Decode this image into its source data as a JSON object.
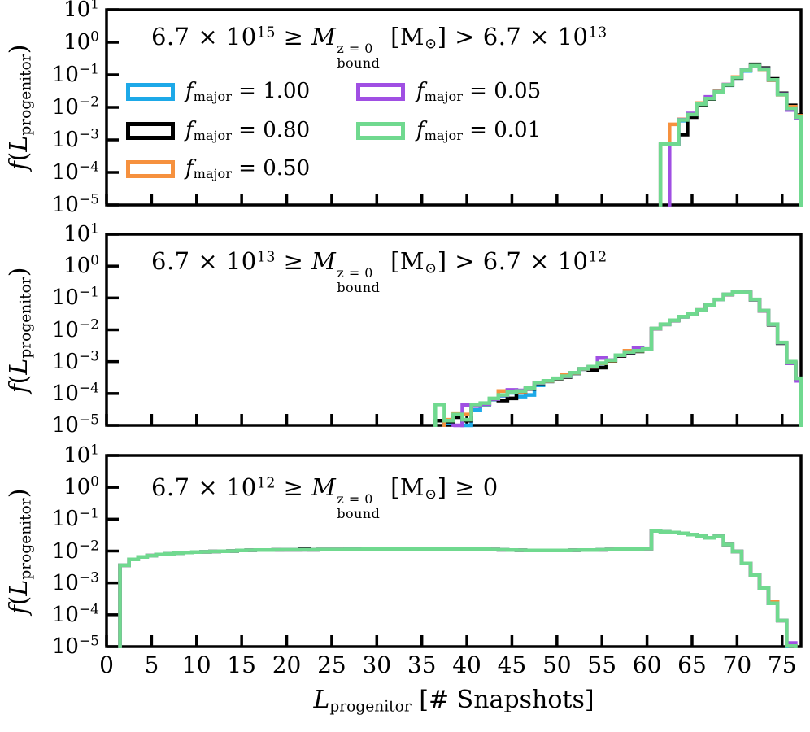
{
  "colors": {
    "blue": "#1da9e8",
    "black": "#000000",
    "orange": "#f6913e",
    "purple": "#a04fe3",
    "green": "#70d98f",
    "axis": "#000000",
    "background": "#ffffff"
  },
  "chart_data": {
    "type": "step_histogram",
    "y_scale": "log",
    "x": {
      "min": 0,
      "max": 77.1,
      "bin_width": 1,
      "tick_values": [
        0,
        5,
        10,
        15,
        20,
        25,
        30,
        35,
        40,
        45,
        50,
        55,
        60,
        65,
        70,
        75
      ],
      "tick_labels": [
        "0",
        "5",
        "10",
        "15",
        "20",
        "25",
        "30",
        "35",
        "40",
        "45",
        "50",
        "55",
        "60",
        "65",
        "70",
        "75"
      ],
      "label_segments": [
        {
          "t": "L",
          "it": 1
        },
        {
          "sub": "progenitor"
        },
        {
          "t": " [# Snapshots]"
        }
      ]
    },
    "y": {
      "exp_max": 1,
      "exp_min": -5,
      "base": "10",
      "tick_exps": [
        1,
        0,
        -1,
        -2,
        -3,
        -4,
        -5
      ],
      "tick_exp_labels": [
        "1",
        "0",
        "−1",
        "−2",
        "−3",
        "−4",
        "−5"
      ],
      "label_segments": [
        {
          "t": "f",
          "it": 1
        },
        {
          "t": "("
        },
        {
          "t": "L",
          "it": 1
        },
        {
          "sub": "progenitor"
        },
        {
          "t": ")"
        }
      ]
    },
    "legend": {
      "items": [
        {
          "key": "f1.00",
          "color": "blue",
          "segments": [
            {
              "t": "f",
              "it": 1
            },
            {
              "sub": "major"
            },
            {
              "t": " = 1.00"
            }
          ]
        },
        {
          "key": "f0.80",
          "color": "black",
          "segments": [
            {
              "t": "f",
              "it": 1
            },
            {
              "sub": "major"
            },
            {
              "t": " = 0.80"
            }
          ]
        },
        {
          "key": "f0.50",
          "color": "orange",
          "segments": [
            {
              "t": "f",
              "it": 1
            },
            {
              "sub": "major"
            },
            {
              "t": " = 0.50"
            }
          ]
        },
        {
          "key": "f0.05",
          "color": "purple",
          "segments": [
            {
              "t": "f",
              "it": 1
            },
            {
              "sub": "major"
            },
            {
              "t": " = 0.05"
            }
          ]
        },
        {
          "key": "f0.01",
          "color": "green",
          "segments": [
            {
              "t": "f",
              "it": 1
            },
            {
              "sub": "major"
            },
            {
              "t": " = 0.01"
            }
          ]
        }
      ]
    },
    "panels": [
      {
        "name": "high-mass",
        "title_segments": [
          {
            "t": "6.7 × 10"
          },
          {
            "sup": "15"
          },
          {
            "t": " ≥ "
          },
          {
            "t": "M",
            "it": 1
          },
          {
            "stack": {
              "sup": "z = 0",
              "sub": "bound"
            }
          },
          {
            "t": " [M"
          },
          {
            "sub": "⊙"
          },
          {
            "t": "] > 6.7 × 10"
          },
          {
            "sup": "13"
          }
        ],
        "series": [
          {
            "key": "blue",
            "color": "blue",
            "start": 62,
            "values": [
              0.00072,
              0.00072,
              0.0039,
              0.0058,
              0.012,
              0.018,
              0.029,
              0.0475,
              0.08,
              0.132,
              0.186,
              0.147,
              0.068,
              0.0245,
              0.009,
              0.0048
            ]
          },
          {
            "key": "black",
            "color": "black",
            "start": 62,
            "values": [
              0.00073,
              0.00073,
              0.00145,
              0.005,
              0.012,
              0.018,
              0.029,
              0.048,
              0.08,
              0.14,
              0.21,
              0.162,
              0.075,
              0.027,
              0.0115,
              0.0058
            ]
          },
          {
            "key": "orange",
            "color": "orange",
            "start": 62,
            "values": [
              0.00075,
              0.003,
              0.0043,
              0.0062,
              0.0135,
              0.02,
              0.031,
              0.05,
              0.085,
              0.135,
              0.188,
              0.148,
              0.068,
              0.0245,
              0.0105,
              0.0055
            ]
          },
          {
            "key": "purple",
            "color": "purple",
            "start": 63,
            "values": [
              0.00078,
              0.0042,
              0.0065,
              0.013,
              0.021,
              0.0305,
              0.05,
              0.083,
              0.14,
              0.19,
              0.152,
              0.069,
              0.0255,
              0.0083,
              0.0046
            ]
          },
          {
            "key": "green",
            "color": "green",
            "start": 62,
            "values": [
              0.00075,
              0.00075,
              0.0041,
              0.006,
              0.0125,
              0.0185,
              0.03,
              0.049,
              0.082,
              0.138,
              0.19,
              0.15,
              0.07,
              0.025,
              0.0094,
              0.005
            ]
          }
        ]
      },
      {
        "name": "mid-mass",
        "title_segments": [
          {
            "t": "6.7 × 10"
          },
          {
            "sup": "13"
          },
          {
            "t": " ≥ "
          },
          {
            "t": "M",
            "it": 1
          },
          {
            "stack": {
              "sup": "z = 0",
              "sub": "bound"
            }
          },
          {
            "t": " [M"
          },
          {
            "sub": "⊙"
          },
          {
            "t": "] > 6.7 × 10"
          },
          {
            "sup": "12"
          }
        ],
        "series": [
          {
            "key": "blue",
            "color": "blue",
            "start": 38,
            "values": [
              1.2e-05,
              2e-05,
              1e-05,
              3e-05,
              4.5e-05,
              6.5e-05,
              8.5e-05,
              0.000105,
              8e-05,
              9e-05,
              0.00018,
              0.00024,
              0.00029,
              0.00034,
              0.00043,
              0.00058,
              0.00068,
              0.00087,
              0.00105,
              0.00155,
              0.00195,
              0.00215,
              0.00245,
              0.0108,
              0.0148,
              0.0198,
              0.0258,
              0.0318,
              0.0418,
              0.0595,
              0.0895,
              0.129,
              0.151,
              0.149,
              0.089,
              0.0395,
              0.0148,
              0.0039,
              0.00095,
              0.00029
            ]
          },
          {
            "key": "black",
            "color": "black",
            "start": 37,
            "values": [
              1.4e-05,
              1.3e-05,
              1.8e-05,
              1.4e-05,
              4.2e-05,
              4.6e-05,
              6.6e-05,
              6e-05,
              7e-05,
              0.000115,
              0.00014,
              0.00021,
              0.00024,
              0.00029,
              0.00033,
              0.00043,
              0.00058,
              0.00055,
              0.00065,
              0.00105,
              0.0015,
              0.0019,
              0.0021,
              0.0024,
              0.0107,
              0.0147,
              0.0197,
              0.0257,
              0.0317,
              0.0415,
              0.059,
              0.089,
              0.128,
              0.15,
              0.148,
              0.088,
              0.039,
              0.0145,
              0.0038,
              0.0009,
              0.00028
            ]
          },
          {
            "key": "orange",
            "color": "orange",
            "start": 38,
            "values": [
              1.5e-05,
              2.4e-05,
              2.2e-05,
              4.3e-05,
              4.8e-05,
              6.8e-05,
              0.00012,
              0.000125,
              0.000115,
              0.000145,
              0.000215,
              0.000245,
              0.000295,
              0.0004,
              0.00044,
              0.00059,
              0.00069,
              0.00088,
              0.00108,
              0.00158,
              0.0022,
              0.00218,
              0.00248,
              0.0109,
              0.0149,
              0.0199,
              0.0259,
              0.0319,
              0.0419,
              0.0598,
              0.0898,
              0.13,
              0.152,
              0.15,
              0.0895,
              0.0398,
              0.0149,
              0.00395,
              0.00098,
              0.000295
            ]
          },
          {
            "key": "purple",
            "color": "purple",
            "start": 39,
            "values": [
              1e-05,
              4.3e-05,
              4e-05,
              4.7e-05,
              6.7e-05,
              8.8e-05,
              0.00013,
              0.000125,
              0.000148,
              0.000218,
              0.000248,
              0.000298,
              0.000345,
              0.000445,
              0.000595,
              0.000695,
              0.0013,
              0.00112,
              0.00158,
              0.00198,
              0.0027,
              0.00248,
              0.0109,
              0.0149,
              0.0199,
              0.0259,
              0.0319,
              0.0419,
              0.0598,
              0.0898,
              0.13,
              0.152,
              0.15,
              0.0898,
              0.0398,
              0.0148,
              0.00392,
              0.0009,
              0.00025
            ]
          },
          {
            "key": "green",
            "color": "green",
            "start": 37,
            "values": [
              4.5e-05,
              1.4e-05,
              2.2e-05,
              1.5e-05,
              4.5e-05,
              5e-05,
              7e-05,
              9e-05,
              0.00011,
              0.00012,
              0.00015,
              0.00022,
              0.00025,
              0.0003,
              0.00035,
              0.00045,
              0.0006,
              0.0007,
              0.0009,
              0.0011,
              0.0016,
              0.002,
              0.0022,
              0.0025,
              0.011,
              0.015,
              0.02,
              0.026,
              0.032,
              0.042,
              0.06,
              0.09,
              0.13,
              0.152,
              0.15,
              0.09,
              0.04,
              0.015,
              0.004,
              0.001,
              0.0003
            ]
          }
        ]
      },
      {
        "name": "low-mass",
        "title_segments": [
          {
            "t": "6.7 × 10"
          },
          {
            "sup": "12"
          },
          {
            "t": " ≥ "
          },
          {
            "t": "M",
            "it": 1
          },
          {
            "stack": {
              "sup": "z = 0",
              "sub": "bound"
            }
          },
          {
            "t": " [M"
          },
          {
            "sub": "⊙"
          },
          {
            "t": "] ≥ 0"
          }
        ],
        "series": [
          {
            "key": "blue",
            "color": "blue",
            "clone": "green",
            "trim_end": 75,
            "overrides": {
              "33": 0.0118
            }
          },
          {
            "key": "black",
            "color": "black",
            "clone": "green",
            "overrides": {
              "22": 0.0115,
              "68": 0.031,
              "76": 1.05e-05
            }
          },
          {
            "key": "orange",
            "color": "orange",
            "clone": "green",
            "overrides": {
              "34": 0.0119,
              "74": 0.00025,
              "76": 1.05e-05
            }
          },
          {
            "key": "purple",
            "color": "purple",
            "clone": "green",
            "overrides": {
              "76": 1.3e-05
            }
          },
          {
            "key": "green",
            "color": "green",
            "start": 2,
            "values": [
              0.0036,
              0.0055,
              0.0065,
              0.0072,
              0.0078,
              0.0082,
              0.0086,
              0.009,
              0.0093,
              0.0095,
              0.0097,
              0.0099,
              0.01,
              0.0105,
              0.0106,
              0.0107,
              0.0108,
              0.0109,
              0.011,
              0.011,
              0.011,
              0.011,
              0.0112,
              0.0112,
              0.0112,
              0.0113,
              0.0113,
              0.0114,
              0.0114,
              0.0115,
              0.0115,
              0.0115,
              0.0116,
              0.0116,
              0.0116,
              0.0117,
              0.0117,
              0.0117,
              0.0118,
              0.0118,
              0.0115,
              0.0112,
              0.011,
              0.0108,
              0.0106,
              0.0105,
              0.0105,
              0.0104,
              0.0104,
              0.0105,
              0.0106,
              0.0107,
              0.0108,
              0.011,
              0.0112,
              0.0114,
              0.0116,
              0.0118,
              0.012,
              0.043,
              0.04,
              0.038,
              0.036,
              0.033,
              0.03,
              0.026,
              0.029,
              0.016,
              0.0097,
              0.0041,
              0.0018,
              0.0007,
              0.00023,
              6.6e-05,
              1.05e-05
            ]
          }
        ]
      }
    ]
  }
}
